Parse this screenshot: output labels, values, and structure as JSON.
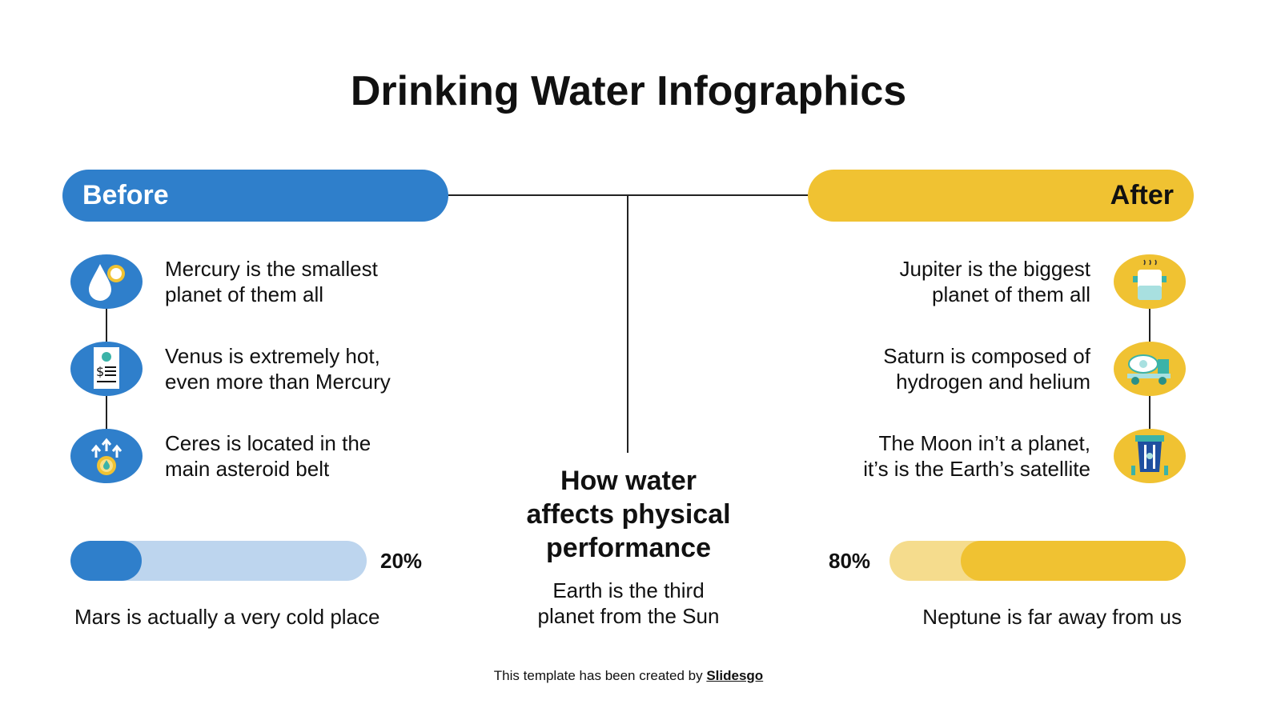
{
  "title": "Drinking Water Infographics",
  "before": {
    "label": "Before",
    "color": "#2F7FCB",
    "items": [
      {
        "line1": "Mercury is the smallest",
        "line2": "planet of them all",
        "icon": "water-drop-icon"
      },
      {
        "line1": "Venus is extremely hot,",
        "line2": "even more than Mercury",
        "icon": "water-bill-icon"
      },
      {
        "line1": "Ceres is located in the",
        "line2": "main asteroid belt",
        "icon": "water-coin-rising-icon"
      }
    ],
    "progress": 20,
    "progress_label": "20%",
    "caption": "Mars is actually a very cold place"
  },
  "after": {
    "label": "After",
    "color": "#F0C232",
    "items": [
      {
        "line1": "Jupiter is the biggest",
        "line2": "planet of them all",
        "icon": "boiling-pot-icon"
      },
      {
        "line1": "Saturn is composed of",
        "line2": "hydrogen and helium",
        "icon": "water-tank-truck-icon"
      },
      {
        "line1": "The Moon in’t a planet,",
        "line2": "it’s is the Earth’s satellite",
        "icon": "water-cart-icon"
      }
    ],
    "progress": 80,
    "progress_label": "80%",
    "caption": "Neptune is far away from us"
  },
  "center": {
    "heading1": "How water",
    "heading2": "affects physical",
    "heading3": "performance",
    "sub1": "Earth is the third",
    "sub2": "planet from the Sun"
  },
  "footer": {
    "text": "This template has been created by ",
    "link": "Slidesgo"
  }
}
